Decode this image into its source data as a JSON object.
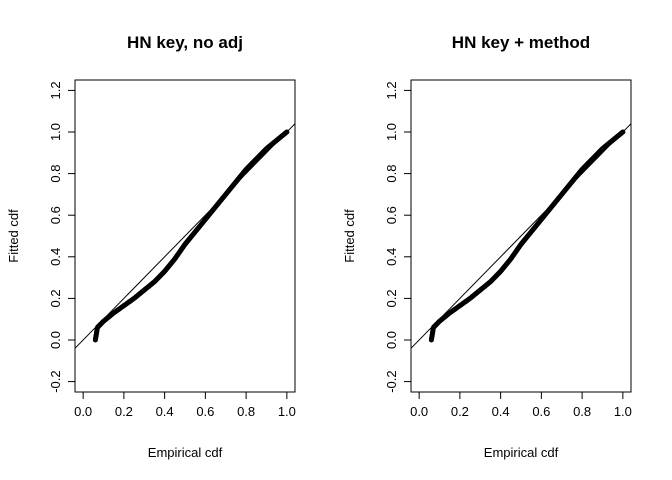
{
  "chart_data": [
    {
      "type": "scatter",
      "title": "HN key, no adj",
      "xlabel": "Empirical cdf",
      "ylabel": "Fitted cdf",
      "xlim": [
        -0.04,
        1.04
      ],
      "ylim": [
        -0.25,
        1.25
      ],
      "xticks": [
        0.0,
        0.2,
        0.4,
        0.6,
        0.8,
        1.0
      ],
      "yticks": [
        -0.2,
        0.0,
        0.2,
        0.4,
        0.6,
        0.8,
        1.0,
        1.2
      ],
      "xtick_labels": [
        "0.0",
        "0.2",
        "0.4",
        "0.6",
        "0.8",
        "1.0"
      ],
      "ytick_labels": [
        "-0.2",
        "0.0",
        "0.2",
        "0.4",
        "0.6",
        "0.8",
        "1.0",
        "1.2"
      ],
      "reference_line": {
        "intercept": 0,
        "slope": 1
      },
      "curve_points": [
        {
          "x": 0.06,
          "y": 0.0
        },
        {
          "x": 0.065,
          "y": 0.03
        },
        {
          "x": 0.07,
          "y": 0.06
        },
        {
          "x": 0.1,
          "y": 0.09
        },
        {
          "x": 0.15,
          "y": 0.13
        },
        {
          "x": 0.2,
          "y": 0.165
        },
        {
          "x": 0.25,
          "y": 0.2
        },
        {
          "x": 0.3,
          "y": 0.24
        },
        {
          "x": 0.35,
          "y": 0.28
        },
        {
          "x": 0.4,
          "y": 0.33
        },
        {
          "x": 0.45,
          "y": 0.39
        },
        {
          "x": 0.5,
          "y": 0.46
        },
        {
          "x": 0.55,
          "y": 0.52
        },
        {
          "x": 0.6,
          "y": 0.58
        },
        {
          "x": 0.65,
          "y": 0.64
        },
        {
          "x": 0.7,
          "y": 0.7
        },
        {
          "x": 0.75,
          "y": 0.76
        },
        {
          "x": 0.8,
          "y": 0.82
        },
        {
          "x": 0.85,
          "y": 0.87
        },
        {
          "x": 0.9,
          "y": 0.92
        },
        {
          "x": 0.95,
          "y": 0.96
        },
        {
          "x": 1.0,
          "y": 1.0
        }
      ]
    },
    {
      "type": "scatter",
      "title": "HN key + method",
      "xlabel": "Empirical cdf",
      "ylabel": "Fitted cdf",
      "xlim": [
        -0.04,
        1.04
      ],
      "ylim": [
        -0.25,
        1.25
      ],
      "xticks": [
        0.0,
        0.2,
        0.4,
        0.6,
        0.8,
        1.0
      ],
      "yticks": [
        -0.2,
        0.0,
        0.2,
        0.4,
        0.6,
        0.8,
        1.0,
        1.2
      ],
      "xtick_labels": [
        "0.0",
        "0.2",
        "0.4",
        "0.6",
        "0.8",
        "1.0"
      ],
      "ytick_labels": [
        "-0.2",
        "0.0",
        "0.2",
        "0.4",
        "0.6",
        "0.8",
        "1.0",
        "1.2"
      ],
      "reference_line": {
        "intercept": 0,
        "slope": 1
      },
      "curve_points": [
        {
          "x": 0.06,
          "y": 0.0
        },
        {
          "x": 0.065,
          "y": 0.03
        },
        {
          "x": 0.07,
          "y": 0.06
        },
        {
          "x": 0.1,
          "y": 0.09
        },
        {
          "x": 0.15,
          "y": 0.13
        },
        {
          "x": 0.2,
          "y": 0.165
        },
        {
          "x": 0.25,
          "y": 0.2
        },
        {
          "x": 0.3,
          "y": 0.24
        },
        {
          "x": 0.35,
          "y": 0.28
        },
        {
          "x": 0.4,
          "y": 0.33
        },
        {
          "x": 0.45,
          "y": 0.39
        },
        {
          "x": 0.5,
          "y": 0.46
        },
        {
          "x": 0.55,
          "y": 0.52
        },
        {
          "x": 0.6,
          "y": 0.58
        },
        {
          "x": 0.65,
          "y": 0.64
        },
        {
          "x": 0.7,
          "y": 0.7
        },
        {
          "x": 0.75,
          "y": 0.76
        },
        {
          "x": 0.8,
          "y": 0.82
        },
        {
          "x": 0.85,
          "y": 0.87
        },
        {
          "x": 0.9,
          "y": 0.92
        },
        {
          "x": 0.95,
          "y": 0.96
        },
        {
          "x": 1.0,
          "y": 1.0
        }
      ]
    }
  ]
}
